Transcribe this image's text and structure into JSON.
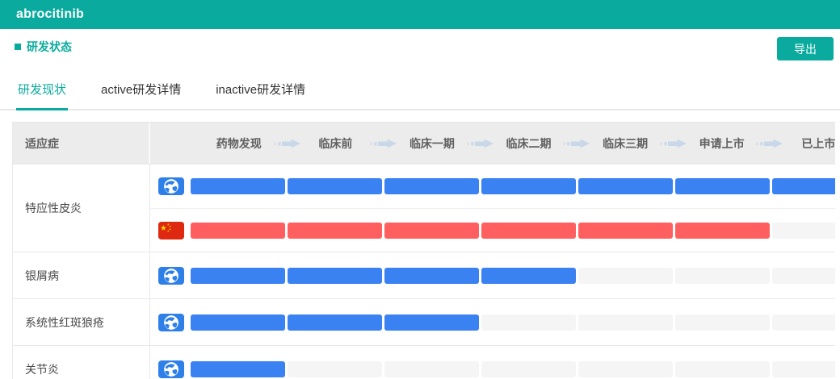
{
  "page": {
    "title": "abrocitinib"
  },
  "toolbar": {
    "section_label": "研发状态",
    "export_label": "导出"
  },
  "tabs": [
    {
      "name": "tab-rd-current-status",
      "label": "研发现状",
      "active": true
    },
    {
      "name": "tab-active-rd-details",
      "label": "active研发详情",
      "active": false
    },
    {
      "name": "tab-inactive-rd-details",
      "label": "inactive研发详情",
      "active": false
    }
  ],
  "table": {
    "indication_header": "适应症",
    "stages": [
      "药物发现",
      "临床前",
      "临床一期",
      "临床二期",
      "临床三期",
      "申请上市",
      "已上市"
    ],
    "rows": [
      {
        "indication": "特应性皮炎",
        "tracks": [
          {
            "region": "global",
            "icon": "globe-icon",
            "color_key": "blue",
            "stages_reached": 7,
            "highest_stage": "已上市"
          },
          {
            "region": "china",
            "icon": "china-flag-icon",
            "color_key": "red",
            "stages_reached": 6,
            "highest_stage": "申请上市"
          }
        ]
      },
      {
        "indication": "银屑病",
        "tracks": [
          {
            "region": "global",
            "icon": "globe-icon",
            "color_key": "blue",
            "stages_reached": 4,
            "highest_stage": "临床二期"
          }
        ]
      },
      {
        "indication": "系统性红斑狼疮",
        "tracks": [
          {
            "region": "global",
            "icon": "globe-icon",
            "color_key": "blue",
            "stages_reached": 3,
            "highest_stage": "临床一期"
          }
        ]
      },
      {
        "indication": "关节炎",
        "tracks": [
          {
            "region": "global",
            "icon": "globe-icon",
            "color_key": "blue",
            "stages_reached": 1,
            "highest_stage": "药物发现"
          }
        ]
      }
    ]
  },
  "colors": {
    "accent_teal": "#0aab9e",
    "bar_blue": "#3a82f2",
    "bar_red": "#ff5f5f",
    "track_gray": "#f5f5f5",
    "globe_icon_bg": "#2e80e8",
    "flag_red": "#de2910",
    "flag_star_yellow": "#ffde00",
    "arrow_color": "#c9d8e8"
  }
}
